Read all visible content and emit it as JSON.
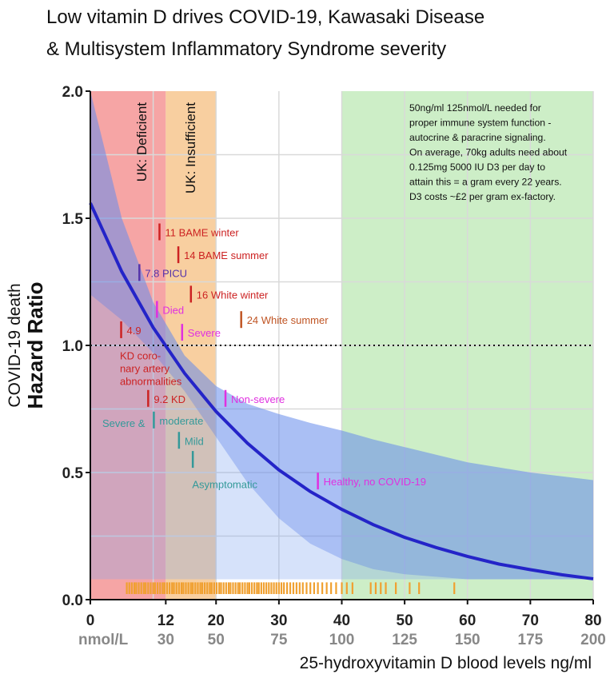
{
  "title_line1": "Low vitamin D drives COVID-19, Kawasaki Disease",
  "title_line2": "& Multisystem Inflammatory Syndrome severity",
  "chart_data": {
    "type": "line",
    "title": "Low vitamin D drives COVID-19, Kawasaki Disease & Multisystem Inflammatory Syndrome severity",
    "xlabel": "25-hydroxyvitamin D blood levels ng/ml",
    "ylabel_line1": "COVID-19 death",
    "ylabel_line2": "Hazard Ratio",
    "xlim": [
      0,
      80
    ],
    "ylim": [
      0,
      2
    ],
    "x_ticks": [
      0,
      12,
      20,
      30,
      40,
      50,
      60,
      70,
      80
    ],
    "x_tick_labels": [
      "0",
      "12",
      "20",
      "30",
      "40",
      "50",
      "60",
      "70",
      "80"
    ],
    "nmol_ticks": [
      {
        "x": 2,
        "label": "nmol/L"
      },
      {
        "x": 12,
        "label": "30"
      },
      {
        "x": 20,
        "label": "50"
      },
      {
        "x": 30,
        "label": "75"
      },
      {
        "x": 40,
        "label": "100"
      },
      {
        "x": 50,
        "label": "125"
      },
      {
        "x": 60,
        "label": "150"
      },
      {
        "x": 70,
        "label": "175"
      },
      {
        "x": 80,
        "label": "200"
      }
    ],
    "y_ticks": [
      0,
      0.5,
      1,
      1.5,
      2
    ],
    "y_tick_labels": [
      "0.0",
      "0.5",
      "1.0",
      "1.5",
      "2.0"
    ],
    "reference_line": 1.0,
    "zones": [
      {
        "x0": 0,
        "x1": 12,
        "color": "#f6a5a5",
        "label": "UK: Deficient"
      },
      {
        "x0": 12,
        "x1": 20,
        "color": "#f8cfa0",
        "label": "UK: Insufficient"
      },
      {
        "x0": 40,
        "x1": 80,
        "color": "#cdeec7",
        "label": ""
      }
    ],
    "band_bottom": 0.08,
    "series": [
      {
        "name": "Hazard ratio",
        "x": [
          0,
          5,
          10,
          15,
          20,
          25,
          30,
          35,
          40,
          45,
          50,
          55,
          60,
          65,
          70,
          75,
          80
        ],
        "values": [
          1.56,
          1.29,
          1.07,
          0.89,
          0.74,
          0.615,
          0.51,
          0.425,
          0.355,
          0.295,
          0.245,
          0.205,
          0.17,
          0.14,
          0.118,
          0.098,
          0.082
        ],
        "upper": [
          2.0,
          1.5,
          1.17,
          0.96,
          0.84,
          0.77,
          0.73,
          0.695,
          0.665,
          0.63,
          0.6,
          0.57,
          0.54,
          0.52,
          0.5,
          0.485,
          0.47
        ],
        "lower": [
          1.2,
          1.1,
          0.97,
          0.82,
          0.64,
          0.46,
          0.32,
          0.22,
          0.16,
          0.12,
          0.1,
          0.09,
          0.08,
          0.08,
          0.08,
          0.08,
          0.08
        ],
        "color": "#2424c8"
      }
    ],
    "annotations": [
      {
        "text": "11 BAME winter",
        "x": 11,
        "y": 1.445,
        "color": "#cc2222"
      },
      {
        "text": "14 BAME summer",
        "x": 14,
        "y": 1.355,
        "color": "#cc2222"
      },
      {
        "text": "7.8 PICU",
        "x": 7.8,
        "y": 1.285,
        "color": "#5533aa"
      },
      {
        "text": "16 White winter",
        "x": 16,
        "y": 1.2,
        "color": "#cc2222"
      },
      {
        "text": "Died",
        "x": 10.6,
        "y": 1.14,
        "color": "#e030e0"
      },
      {
        "text": "24 White summer",
        "x": 24,
        "y": 1.1,
        "color": "#c05524"
      },
      {
        "text": "4.9",
        "x": 4.9,
        "y": 1.06,
        "color": "#cc2222"
      },
      {
        "text": "Severe",
        "x": 14.6,
        "y": 1.05,
        "color": "#e030e0"
      },
      {
        "text": "9.2 KD",
        "x": 9.2,
        "y": 0.79,
        "color": "#cc2222"
      },
      {
        "text": "Non-severe",
        "x": 21.5,
        "y": 0.79,
        "color": "#e030e0"
      },
      {
        "text": "moderate",
        "x": 10.1,
        "y": 0.705,
        "color": "#339999"
      },
      {
        "text": "Mild",
        "x": 14.1,
        "y": 0.625,
        "color": "#339999"
      },
      {
        "text": "Healthy, no COVID-19",
        "x": 36.2,
        "y": 0.465,
        "color": "#e030e0"
      }
    ],
    "extra_labels": [
      {
        "text": "KD coro-",
        "x": 4.7,
        "y": 0.96,
        "color": "#cc2222"
      },
      {
        "text": "nary artery",
        "x": 4.7,
        "y": 0.91,
        "color": "#cc2222"
      },
      {
        "text": "abnormalities",
        "x": 4.7,
        "y": 0.86,
        "color": "#cc2222"
      },
      {
        "text": "Severe &",
        "x": 1.9,
        "y": 0.695,
        "color": "#339999"
      },
      {
        "text": "Asymptomatic",
        "x": 16.2,
        "y": 0.455,
        "color": "#339999"
      }
    ],
    "extra_markers": [
      {
        "x": 16.3,
        "y": 0.55,
        "color": "#339999"
      }
    ],
    "info_box": [
      "50ng/ml 125nmol/L needed for",
      "proper immune system function -",
      "autocrine & paracrine signaling.",
      "On average, 70kg adults need about",
      "0.125mg 5000 IU D3 per day to",
      "attain this = a gram every 22 years.",
      "D3 costs ~£2 per gram ex-factory."
    ],
    "rug_x": [
      5.8,
      6.2,
      6.6,
      7,
      7.3,
      7.7,
      8.1,
      8.5,
      8.8,
      9.2,
      9.6,
      10,
      10.3,
      10.7,
      11.1,
      11.5,
      11.8,
      12.2,
      12.6,
      13,
      13.3,
      13.7,
      14.1,
      14.5,
      14.8,
      15.2,
      15.6,
      16,
      16.3,
      16.7,
      17.1,
      17.5,
      17.8,
      18.2,
      18.6,
      19,
      19.3,
      19.7,
      20.1,
      20.5,
      20.8,
      21.2,
      21.6,
      22,
      22.3,
      22.7,
      23.1,
      23.5,
      23.8,
      24.2,
      24.6,
      25,
      25.3,
      25.7,
      26.1,
      26.5,
      26.8,
      27.2,
      27.6,
      28,
      28.4,
      28.8,
      29.2,
      29.6,
      30,
      30.4,
      30.8,
      31.3,
      31.8,
      32.3,
      32.8,
      33.3,
      33.8,
      34.4,
      35,
      35.6,
      36.2,
      36.9,
      37.6,
      38.3,
      39.1,
      40,
      40.8,
      41.7,
      44.6,
      45.4,
      46.2,
      47,
      48.6,
      50.8,
      52.3,
      57.9
    ]
  }
}
